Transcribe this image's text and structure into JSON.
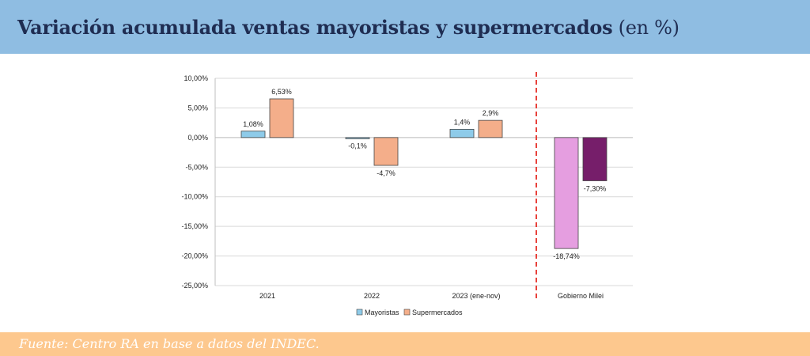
{
  "header": {
    "title": "Variación acumulada ventas mayoristas y supermercados",
    "unit": "(en %)"
  },
  "footer": {
    "source": "Fuente: Centro RA en base a datos del INDEC."
  },
  "colors": {
    "header_bg": "#8fbde2",
    "footer_bg": "#fdc88e",
    "mayoristas": "#8ecbe9",
    "supermercados": "#f4ae8a",
    "milei_mayoristas": "#e59ee0",
    "milei_supermercados": "#761e6a",
    "divider": "#e8413b"
  },
  "chart_data": {
    "type": "bar",
    "categories": [
      "2021",
      "2022",
      "2023 (ene-nov)",
      "Gobierno Milei"
    ],
    "series": [
      {
        "name": "Mayoristas",
        "values": [
          1.08,
          -0.1,
          1.4,
          -18.74
        ],
        "labels": [
          "1,08%",
          "-0,1%",
          "1,4%",
          "-18,74%"
        ]
      },
      {
        "name": "Supermercados",
        "values": [
          6.53,
          -4.7,
          2.9,
          -7.3
        ],
        "labels": [
          "6,53%",
          "-4,7%",
          "2,9%",
          "-7,30%"
        ]
      }
    ],
    "ylim": [
      -25,
      10
    ],
    "yticks": [
      10,
      5,
      0,
      -5,
      -10,
      -15,
      -20,
      -25
    ],
    "ytick_labels": [
      "10,00%",
      "5,00%",
      "0,00%",
      "-5,00%",
      "-10,00%",
      "-15,00%",
      "-20,00%",
      "-25,00%"
    ],
    "grid": true,
    "legend_position": "bottom",
    "divider_before_category": "Gobierno Milei"
  }
}
